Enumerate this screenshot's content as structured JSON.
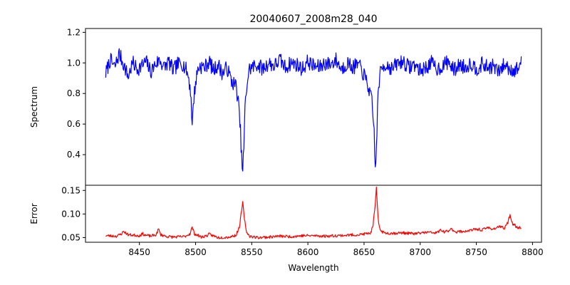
{
  "chart_data": [
    {
      "type": "line",
      "panel": "top",
      "title": "20040607_2008m28_040",
      "xlabel": "",
      "ylabel": "Spectrum",
      "xlim": [
        8402,
        8808
      ],
      "ylim": [
        0.2,
        1.225
      ],
      "yticks": [
        0.4,
        0.6,
        0.8,
        1.0,
        1.2
      ],
      "ytick_labels": [
        "0.4",
        "0.6",
        "0.8",
        "1.0",
        "1.2"
      ],
      "grid": false,
      "color": "#0000ff",
      "series": [
        {
          "noise_amplitude": 0.05,
          "x_range": [
            8420,
            8790
          ],
          "x": [
            8420,
            8424,
            8428,
            8432,
            8436,
            8440,
            8444,
            8448,
            8452,
            8456,
            8460,
            8464,
            8468,
            8472,
            8476,
            8480,
            8484,
            8488,
            8492,
            8494,
            8496,
            8497,
            8498,
            8500,
            8502,
            8504,
            8508,
            8512,
            8516,
            8520,
            8524,
            8528,
            8532,
            8536,
            8538,
            8540,
            8541,
            8542,
            8543,
            8544,
            8546,
            8548,
            8550,
            8555,
            8560,
            8565,
            8570,
            8575,
            8580,
            8585,
            8590,
            8595,
            8600,
            8605,
            8610,
            8615,
            8620,
            8625,
            8630,
            8635,
            8640,
            8645,
            8650,
            8654,
            8657,
            8659,
            8660,
            8661,
            8662,
            8663,
            8665,
            8667,
            8670,
            8675,
            8680,
            8685,
            8690,
            8695,
            8700,
            8705,
            8710,
            8715,
            8720,
            8725,
            8730,
            8735,
            8740,
            8745,
            8750,
            8755,
            8760,
            8765,
            8770,
            8775,
            8780,
            8785,
            8790
          ],
          "values": [
            0.93,
            1.02,
            0.97,
            1.06,
            0.99,
            0.91,
            1.0,
            0.96,
            0.98,
            1.01,
            0.94,
            0.99,
            1.02,
            0.97,
            1.01,
            0.95,
            0.99,
            1.0,
            0.95,
            0.9,
            0.78,
            0.57,
            0.74,
            0.87,
            0.96,
            0.98,
            0.97,
            1.01,
            0.95,
            0.99,
            0.93,
            0.97,
            0.88,
            0.85,
            0.75,
            0.55,
            0.38,
            0.29,
            0.45,
            0.7,
            0.88,
            0.96,
            0.97,
            0.99,
            0.96,
            1.0,
            0.98,
            1.02,
            0.97,
            1.0,
            0.99,
            0.96,
            1.01,
            0.98,
            0.97,
            1.0,
            0.99,
            1.02,
            0.96,
            1.0,
            0.97,
            0.99,
            0.92,
            0.84,
            0.74,
            0.55,
            0.31,
            0.42,
            0.7,
            0.86,
            0.95,
            0.98,
            0.99,
            0.96,
            1.0,
            1.01,
            0.97,
            0.99,
            0.95,
            0.97,
            1.0,
            0.96,
            0.98,
            1.01,
            0.95,
            0.99,
            0.97,
            1.0,
            0.96,
            0.99,
            0.97,
            0.98,
            0.94,
            0.99,
            0.96,
            0.95,
            1.0
          ]
        }
      ]
    },
    {
      "type": "line",
      "panel": "bottom",
      "title": "",
      "xlabel": "Wavelength",
      "ylabel": "Error",
      "xlim": [
        8402,
        8808
      ],
      "ylim": [
        0.04,
        0.161
      ],
      "xticks": [
        8450,
        8500,
        8550,
        8600,
        8650,
        8700,
        8750,
        8800
      ],
      "xtick_labels": [
        "8450",
        "8500",
        "8550",
        "8600",
        "8650",
        "8700",
        "8750",
        "8800"
      ],
      "yticks": [
        0.05,
        0.1,
        0.15
      ],
      "ytick_labels": [
        "0.05",
        "0.10",
        "0.15"
      ],
      "grid": false,
      "color": "#ff0000",
      "series": [
        {
          "noise_amplitude": 0.003,
          "x_range": [
            8420,
            8790
          ],
          "x": [
            8420,
            8430,
            8434,
            8436,
            8440,
            8450,
            8453,
            8455,
            8460,
            8465,
            8467,
            8469,
            8475,
            8480,
            8490,
            8495,
            8497,
            8499,
            8505,
            8510,
            8512,
            8520,
            8530,
            8536,
            8539,
            8541,
            8542,
            8543,
            8545,
            8548,
            8555,
            8565,
            8575,
            8585,
            8595,
            8605,
            8615,
            8625,
            8635,
            8645,
            8652,
            8656,
            8658,
            8660,
            8661,
            8662,
            8663,
            8665,
            8668,
            8675,
            8685,
            8695,
            8705,
            8715,
            8718,
            8722,
            8728,
            8732,
            8738,
            8745,
            8750,
            8755,
            8760,
            8765,
            8770,
            8775,
            8778,
            8780,
            8782,
            8786,
            8790
          ],
          "values": [
            0.054,
            0.053,
            0.058,
            0.063,
            0.056,
            0.054,
            0.058,
            0.055,
            0.053,
            0.056,
            0.068,
            0.056,
            0.052,
            0.051,
            0.052,
            0.058,
            0.072,
            0.058,
            0.051,
            0.054,
            0.057,
            0.05,
            0.051,
            0.055,
            0.072,
            0.108,
            0.124,
            0.1,
            0.064,
            0.053,
            0.05,
            0.051,
            0.053,
            0.052,
            0.054,
            0.054,
            0.053,
            0.054,
            0.055,
            0.056,
            0.058,
            0.06,
            0.075,
            0.12,
            0.155,
            0.11,
            0.08,
            0.064,
            0.06,
            0.059,
            0.06,
            0.058,
            0.061,
            0.06,
            0.066,
            0.061,
            0.068,
            0.062,
            0.063,
            0.065,
            0.068,
            0.066,
            0.071,
            0.068,
            0.073,
            0.07,
            0.082,
            0.099,
            0.08,
            0.072,
            0.071
          ]
        }
      ]
    }
  ]
}
